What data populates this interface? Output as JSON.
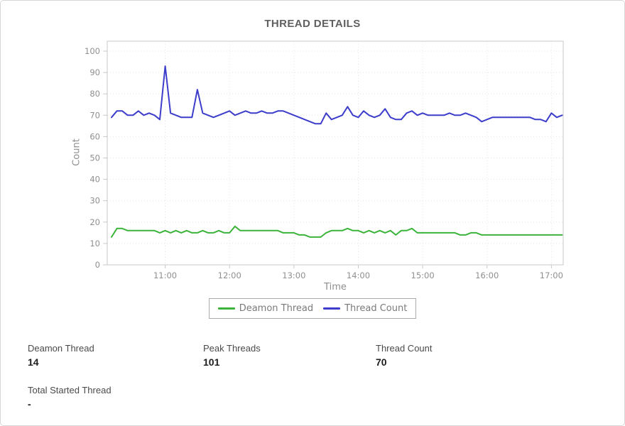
{
  "chart_data": {
    "type": "line",
    "title": "THREAD DETAILS",
    "xlabel": "Time",
    "ylabel": "Count",
    "ylim": [
      0,
      100
    ],
    "y_tick_step": 10,
    "grid": true,
    "legend_position": "bottom",
    "x_tick_labels": [
      "11:00",
      "12:00",
      "13:00",
      "14:00",
      "15:00",
      "16:00",
      "17:00"
    ],
    "x_tick_minutes": [
      660,
      720,
      780,
      840,
      900,
      960,
      1020
    ],
    "x_range_minutes": [
      606,
      1031
    ],
    "sample_start_minute": 610,
    "sample_interval_minutes": 5,
    "series": [
      {
        "name": "Deamon Thread",
        "color": "#3cb43c",
        "values": [
          13,
          17,
          17,
          16,
          16,
          16,
          16,
          16,
          16,
          15,
          16,
          15,
          16,
          15,
          16,
          15,
          15,
          16,
          15,
          15,
          16,
          15,
          15,
          18,
          16,
          16,
          16,
          16,
          16,
          16,
          16,
          16,
          15,
          15,
          15,
          14,
          14,
          13,
          13,
          13,
          15,
          16,
          16,
          16,
          17,
          16,
          16,
          15,
          16,
          15,
          16,
          15,
          16,
          14,
          16,
          16,
          17,
          15,
          15,
          15,
          15,
          15,
          15,
          15,
          15,
          14,
          14,
          15,
          15,
          14,
          14,
          14,
          14,
          14,
          14,
          14,
          14,
          14,
          14,
          14,
          14,
          14,
          14,
          14,
          14
        ]
      },
      {
        "name": "Thread Count",
        "color": "#3d3dcb",
        "values": [
          69,
          72,
          72,
          70,
          70,
          72,
          70,
          71,
          70,
          68,
          93,
          71,
          70,
          69,
          69,
          69,
          82,
          71,
          70,
          69,
          70,
          71,
          72,
          70,
          71,
          72,
          71,
          71,
          72,
          71,
          71,
          72,
          72,
          71,
          70,
          69,
          68,
          67,
          66,
          66,
          71,
          68,
          69,
          70,
          74,
          70,
          69,
          72,
          70,
          69,
          70,
          73,
          69,
          68,
          68,
          71,
          72,
          70,
          71,
          70,
          70,
          70,
          70,
          71,
          70,
          70,
          71,
          70,
          69,
          67,
          68,
          69,
          69,
          69,
          69,
          69,
          69,
          69,
          69,
          68,
          68,
          67,
          71,
          69,
          70
        ]
      }
    ]
  },
  "stats": [
    {
      "label": "Deamon Thread",
      "value": "14"
    },
    {
      "label": "Peak Threads",
      "value": "101"
    },
    {
      "label": "Thread Count",
      "value": "70"
    },
    {
      "label": "Total Started Thread",
      "value": "-"
    }
  ],
  "colors": {
    "grid_line": "#e5e5e5",
    "axis_border": "#c9c9c9",
    "tick_text": "#8f8f8f",
    "title_text": "#606060"
  }
}
